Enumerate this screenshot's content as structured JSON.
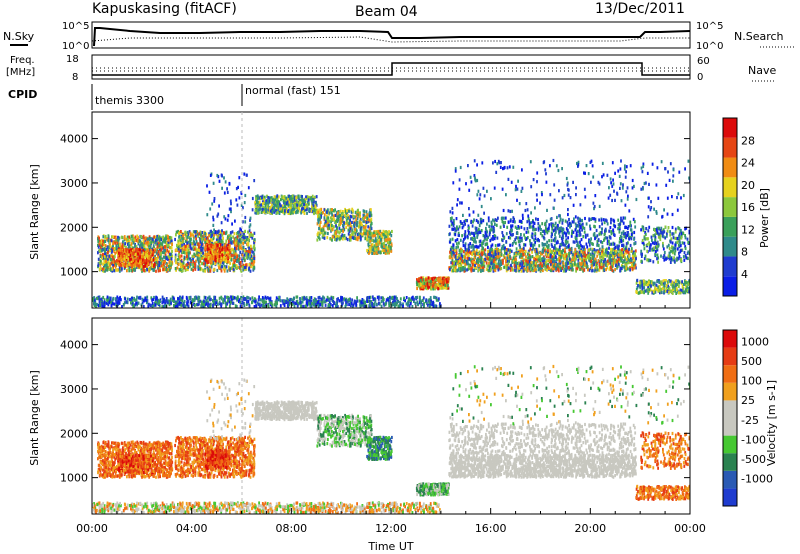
{
  "header": {
    "station": "Kapuskasing (fitACF)",
    "beam": "Beam 04",
    "date": "13/Dec/2011"
  },
  "panels": {
    "nsky_label": "N.Sky",
    "nsearch_label": "N.Search",
    "freq_label_1": "Freq.",
    "freq_label_2": "[MHz]",
    "nave_label": "Nave",
    "cpid_label": "CPID",
    "cpid_1": "themis 3300",
    "cpid_2": "normal (fast) 151",
    "noise_ticks_left": [
      "10^5",
      "10^0"
    ],
    "noise_ticks_right": [
      "10^5",
      "10^0"
    ],
    "freq_ticks_left": [
      "18",
      "8"
    ],
    "freq_ticks_right": [
      "60",
      "0"
    ]
  },
  "colors": {
    "power_scale": [
      "#0a1ee6",
      "#1f3ccf",
      "#2f8a8a",
      "#3aa05a",
      "#8cc83c",
      "#e6d21e",
      "#f08c14",
      "#e64614",
      "#dc0a0a"
    ],
    "velocity_scale": [
      "#1f3ccf",
      "#2a5ab4",
      "#2a8250",
      "#46c832",
      "#c8c8c0",
      "#c8c8c0",
      "#f0a01e",
      "#f06e14",
      "#e63c14",
      "#dc0a0a"
    ]
  },
  "chart_data": [
    {
      "type": "heatmap",
      "parameter": "power",
      "ylabel": "Slant Range [km]",
      "xlabel": "",
      "x_ticks": [
        "00:00",
        "04:00",
        "08:00",
        "12:00",
        "16:00",
        "20:00",
        "00:00"
      ],
      "y_ticks": [
        1000,
        2000,
        3000,
        4000
      ],
      "ylim": [
        180,
        4600
      ],
      "colorbar_label": "Power [dB]",
      "colorbar_ticks": [
        4,
        8,
        12,
        16,
        20,
        24,
        28
      ],
      "clim": [
        0,
        32
      ]
    },
    {
      "type": "heatmap",
      "parameter": "velocity",
      "ylabel": "Slant Range [km]",
      "xlabel": "Time UT",
      "x_ticks": [
        "00:00",
        "04:00",
        "08:00",
        "12:00",
        "16:00",
        "20:00",
        "00:00"
      ],
      "y_ticks": [
        1000,
        2000,
        3000,
        4000
      ],
      "ylim": [
        180,
        4600
      ],
      "colorbar_label": "Velocity [m s-1]",
      "colorbar_ticks": [
        1000,
        500,
        100,
        25,
        -25,
        -100,
        -500,
        -1000
      ]
    }
  ]
}
